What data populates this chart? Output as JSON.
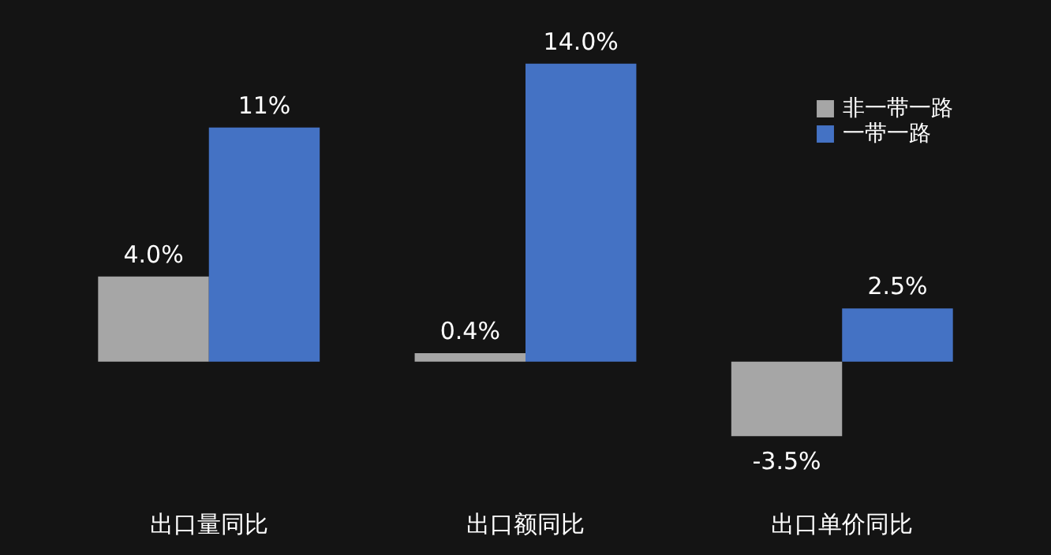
{
  "chart_data": {
    "type": "bar",
    "categories": [
      "出口量同比",
      "出口额同比",
      "出口单价同比"
    ],
    "series": [
      {
        "name": "非一带一路",
        "color": "#a6a6a6",
        "values": [
          4.0,
          0.4,
          -3.5
        ],
        "value_labels": [
          "4.0%",
          "0.4%",
          "-3.5%"
        ]
      },
      {
        "name": "一带一路",
        "color": "#4472c4",
        "values": [
          11,
          14.0,
          2.5
        ],
        "value_labels": [
          "11%",
          "14.0%",
          "2.5%"
        ]
      }
    ],
    "tick_labels": "x",
    "grid": false,
    "legend": "top right"
  }
}
